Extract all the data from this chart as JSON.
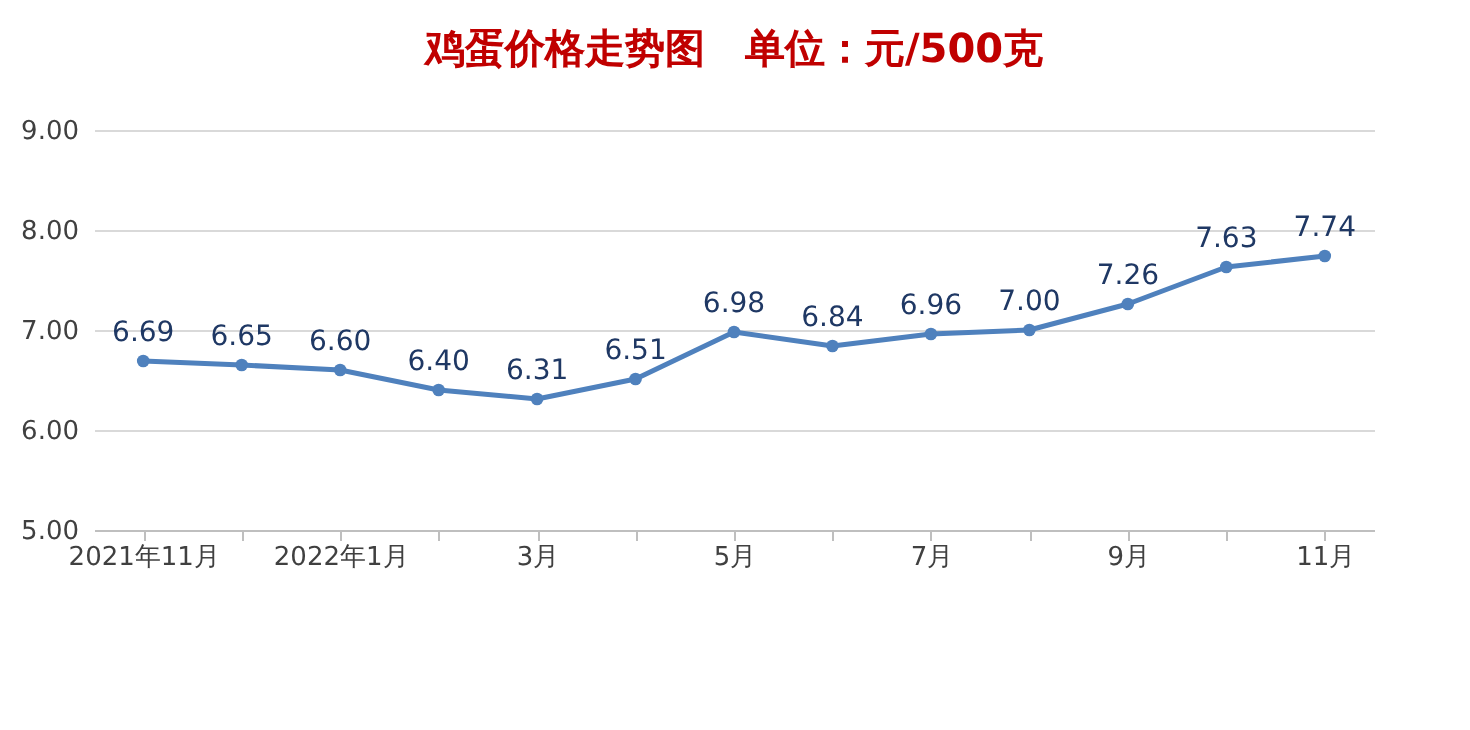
{
  "chart_data": {
    "type": "line",
    "title": "鸡蛋价格走势图　单位：元/500克",
    "categories": [
      "2021年11月",
      null,
      "2022年1月",
      null,
      "3月",
      null,
      "5月",
      null,
      "7月",
      null,
      "9月",
      null,
      "11月"
    ],
    "series": [
      {
        "color": "#4f81bd",
        "values": [
          6.69,
          6.65,
          6.6,
          6.4,
          6.31,
          6.51,
          6.98,
          6.84,
          6.96,
          7.0,
          7.26,
          7.63,
          7.74
        ],
        "value_labels": [
          "6.69",
          "6.65",
          "6.60",
          "6.40",
          "6.31",
          "6.51",
          "6.98",
          "6.84",
          "6.96",
          "7.00",
          "7.26",
          "7.63",
          "7.74"
        ]
      }
    ],
    "ylim": [
      5,
      9
    ],
    "yticks": [
      {
        "value": 5,
        "label": "5.00"
      },
      {
        "value": 6,
        "label": "6.00"
      },
      {
        "value": 7,
        "label": "7.00"
      },
      {
        "value": 8,
        "label": "8.00"
      },
      {
        "value": 9,
        "label": "9.00"
      }
    ],
    "grid": "y",
    "marker": "circle"
  }
}
